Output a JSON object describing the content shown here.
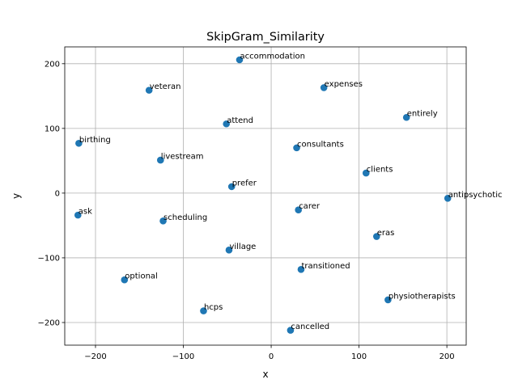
{
  "chart_data": {
    "type": "scatter",
    "title": "SkipGram_Similarity",
    "xlabel": "x",
    "ylabel": "y",
    "xlim": [
      -235,
      222
    ],
    "ylim": [
      -235,
      226
    ],
    "xticks": [
      -200,
      -100,
      0,
      100,
      200
    ],
    "yticks": [
      -200,
      -100,
      0,
      100,
      200
    ],
    "xtick_labels": [
      "−200",
      "−100",
      "0",
      "100",
      "200"
    ],
    "ytick_labels": [
      "−200",
      "−100",
      "0",
      "100",
      "200"
    ],
    "grid": true,
    "marker_color": "#1f77b4",
    "points": [
      {
        "label": "accommodation",
        "x": -36,
        "y": 206
      },
      {
        "label": "veteran",
        "x": -139,
        "y": 159
      },
      {
        "label": "expenses",
        "x": 60,
        "y": 163
      },
      {
        "label": "entirely",
        "x": 154,
        "y": 117
      },
      {
        "label": "attend",
        "x": -51,
        "y": 107
      },
      {
        "label": "birthing",
        "x": -219,
        "y": 77
      },
      {
        "label": "consultants",
        "x": 29,
        "y": 70
      },
      {
        "label": "livestream",
        "x": -126,
        "y": 51
      },
      {
        "label": "clients",
        "x": 108,
        "y": 31
      },
      {
        "label": "prefer",
        "x": -45,
        "y": 10
      },
      {
        "label": "antipsychotic",
        "x": 201,
        "y": -8
      },
      {
        "label": "ask",
        "x": -220,
        "y": -34
      },
      {
        "label": "carer",
        "x": 31,
        "y": -26
      },
      {
        "label": "scheduling",
        "x": -123,
        "y": -43
      },
      {
        "label": "eras",
        "x": 120,
        "y": -67
      },
      {
        "label": "village",
        "x": -48,
        "y": -88
      },
      {
        "label": "transitioned",
        "x": 34,
        "y": -118
      },
      {
        "label": "optional",
        "x": -167,
        "y": -134
      },
      {
        "label": "physiotherapists",
        "x": 133,
        "y": -165
      },
      {
        "label": "hcps",
        "x": -77,
        "y": -182
      },
      {
        "label": "cancelled",
        "x": 22,
        "y": -212
      }
    ]
  }
}
